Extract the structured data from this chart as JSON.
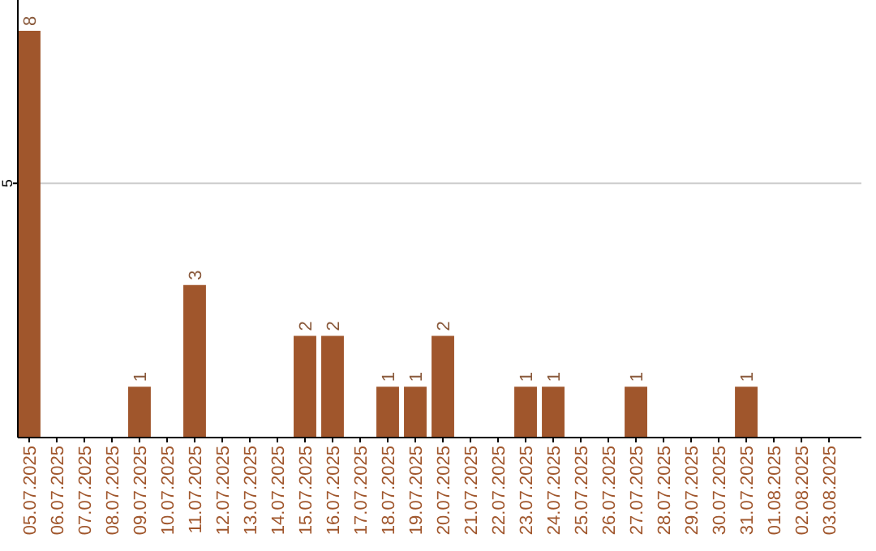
{
  "chart_data": {
    "type": "bar",
    "categories": [
      "05.07.2025",
      "06.07.2025",
      "07.07.2025",
      "08.07.2025",
      "09.07.2025",
      "10.07.2025",
      "11.07.2025",
      "12.07.2025",
      "13.07.2025",
      "14.07.2025",
      "15.07.2025",
      "16.07.2025",
      "17.07.2025",
      "18.07.2025",
      "19.07.2025",
      "20.07.2025",
      "21.07.2025",
      "22.07.2025",
      "23.07.2025",
      "24.07.2025",
      "25.07.2025",
      "26.07.2025",
      "27.07.2025",
      "28.07.2025",
      "29.07.2025",
      "30.07.2025",
      "31.07.2025",
      "01.08.2025",
      "02.08.2025",
      "03.08.2025"
    ],
    "values": [
      8,
      0,
      0,
      0,
      1,
      0,
      3,
      0,
      0,
      0,
      2,
      2,
      0,
      1,
      1,
      2,
      0,
      0,
      1,
      1,
      0,
      0,
      1,
      0,
      0,
      0,
      1,
      0,
      0,
      0
    ],
    "value_labels": [
      "8",
      null,
      null,
      null,
      "1",
      null,
      "3",
      null,
      null,
      null,
      "2",
      "2",
      null,
      "1",
      "1",
      "2",
      null,
      null,
      "1",
      "1",
      null,
      null,
      "1",
      null,
      null,
      null,
      "1",
      null,
      null,
      null
    ],
    "color": "#a0562c",
    "ylim": [
      0,
      8
    ],
    "yticks": [
      5
    ],
    "grid": "y"
  }
}
